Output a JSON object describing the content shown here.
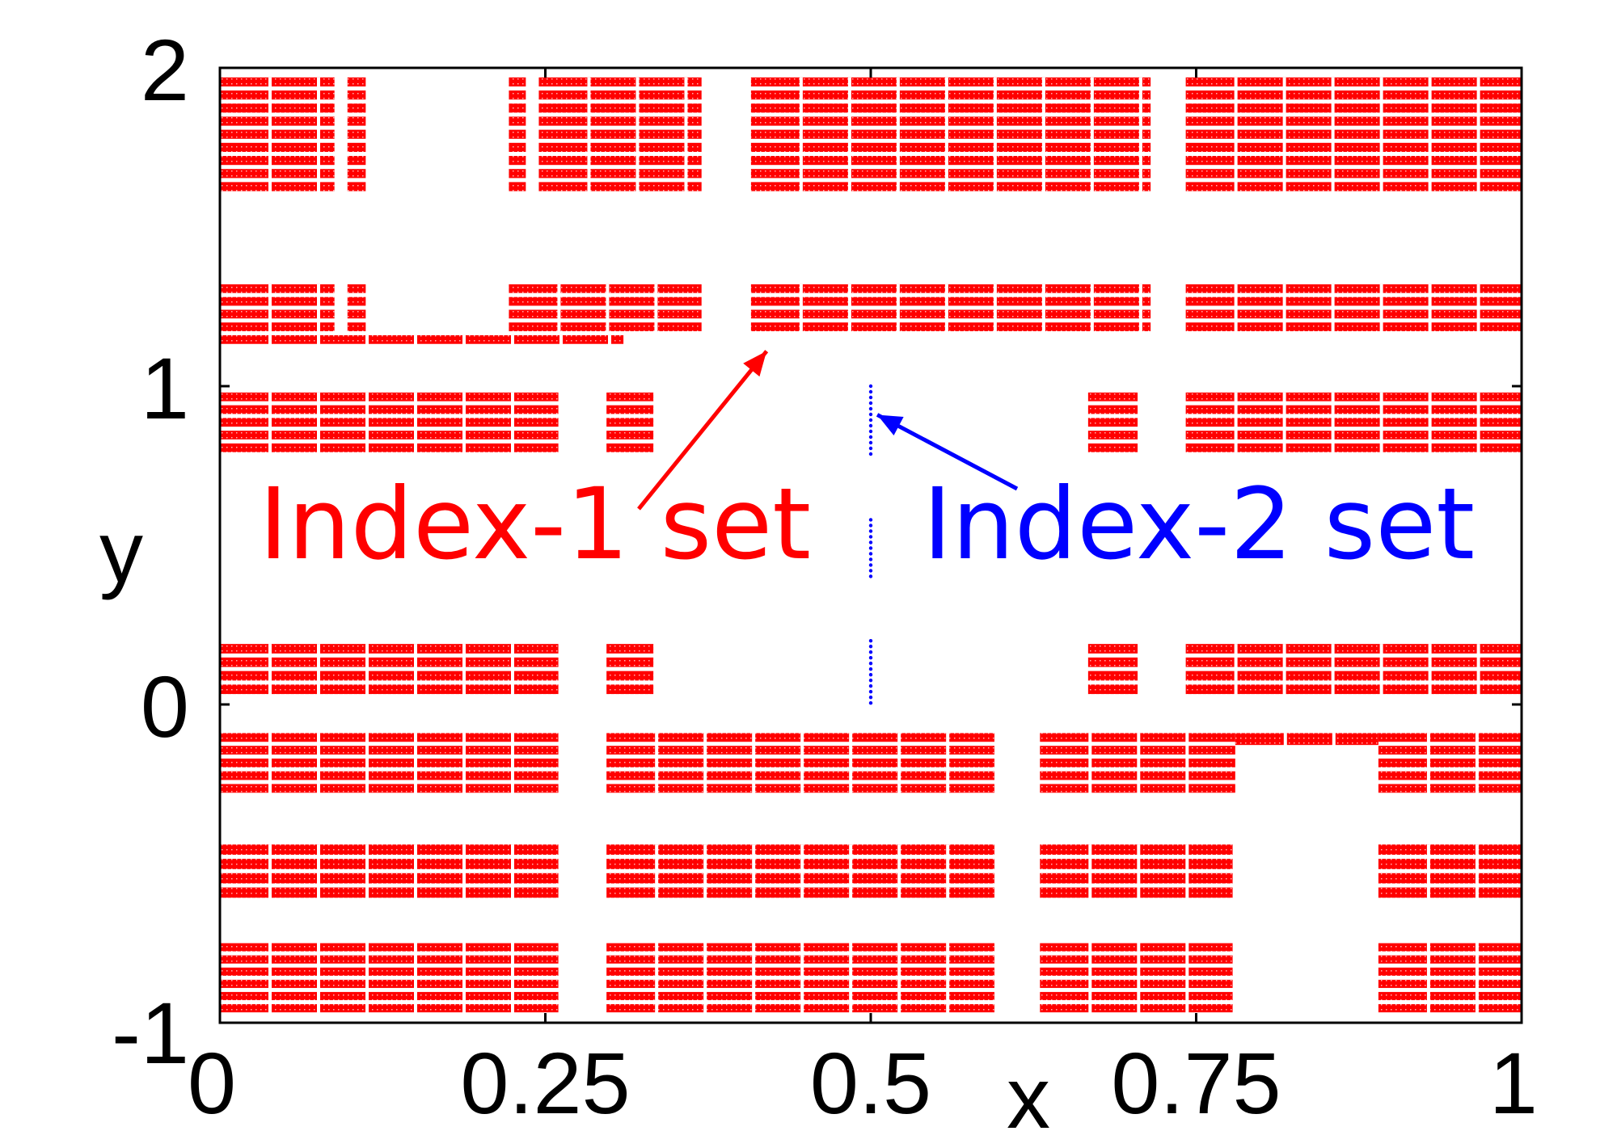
{
  "chart_data": {
    "type": "scatter",
    "title": "",
    "xlabel": "x",
    "ylabel": "y",
    "xlim": [
      0,
      1
    ],
    "ylim": [
      -1,
      2
    ],
    "xticks": [
      "0",
      "0.25",
      "0.5",
      "0.75",
      "1"
    ],
    "xtick_values": [
      0,
      0.25,
      0.5,
      0.75,
      1
    ],
    "yticks": [
      "-1",
      "0",
      "1",
      "2"
    ],
    "ytick_values": [
      -1,
      0,
      1,
      2
    ],
    "grid": false,
    "series": [
      {
        "name": "Index-1 set",
        "color": "#ff0000",
        "marker": "dense point clusters",
        "blocks": [
          {
            "x": [
              0.0,
              0.088
            ],
            "y": [
              1.6,
              1.97
            ]
          },
          {
            "x": [
              0.098,
              0.112
            ],
            "y": [
              1.6,
              1.97
            ]
          },
          {
            "x": [
              0.222,
              0.235
            ],
            "y": [
              1.6,
              1.97
            ]
          },
          {
            "x": [
              0.245,
              0.37
            ],
            "y": [
              1.6,
              1.97
            ]
          },
          {
            "x": [
              0.408,
              0.715
            ],
            "y": [
              1.6,
              1.97
            ]
          },
          {
            "x": [
              0.742,
              1.0
            ],
            "y": [
              1.6,
              1.97
            ]
          },
          {
            "x": [
              0.0,
              0.088
            ],
            "y": [
              1.16,
              1.32
            ]
          },
          {
            "x": [
              0.098,
              0.112
            ],
            "y": [
              1.16,
              1.32
            ]
          },
          {
            "x": [
              0.222,
              0.37
            ],
            "y": [
              1.16,
              1.32
            ]
          },
          {
            "x": [
              0.408,
              0.715
            ],
            "y": [
              1.16,
              1.32
            ]
          },
          {
            "x": [
              0.742,
              1.0
            ],
            "y": [
              1.16,
              1.32
            ]
          },
          {
            "x": [
              0.0,
              0.31
            ],
            "y": [
              1.12,
              1.16
            ]
          },
          {
            "x": [
              0.0,
              0.26
            ],
            "y": [
              0.78,
              0.98
            ]
          },
          {
            "x": [
              0.297,
              0.333
            ],
            "y": [
              0.78,
              0.98
            ]
          },
          {
            "x": [
              0.667,
              0.705
            ],
            "y": [
              0.78,
              0.98
            ]
          },
          {
            "x": [
              0.742,
              1.0
            ],
            "y": [
              0.78,
              0.98
            ]
          },
          {
            "x": [
              0.0,
              0.26
            ],
            "y": [
              0.02,
              0.19
            ]
          },
          {
            "x": [
              0.297,
              0.333
            ],
            "y": [
              0.02,
              0.19
            ]
          },
          {
            "x": [
              0.667,
              0.705
            ],
            "y": [
              0.02,
              0.19
            ]
          },
          {
            "x": [
              0.742,
              1.0
            ],
            "y": [
              0.02,
              0.19
            ]
          },
          {
            "x": [
              0.0,
              0.26
            ],
            "y": [
              -0.29,
              -0.09
            ]
          },
          {
            "x": [
              0.297,
              0.595
            ],
            "y": [
              -0.29,
              -0.09
            ]
          },
          {
            "x": [
              0.63,
              0.78
            ],
            "y": [
              -0.29,
              -0.09
            ]
          },
          {
            "x": [
              0.78,
              0.89
            ],
            "y": [
              -0.14,
              -0.09
            ]
          },
          {
            "x": [
              0.89,
              1.0
            ],
            "y": [
              -0.29,
              -0.09
            ]
          },
          {
            "x": [
              0.0,
              0.26
            ],
            "y": [
              -0.62,
              -0.44
            ]
          },
          {
            "x": [
              0.297,
              0.595
            ],
            "y": [
              -0.62,
              -0.44
            ]
          },
          {
            "x": [
              0.63,
              0.778
            ],
            "y": [
              -0.62,
              -0.44
            ]
          },
          {
            "x": [
              0.89,
              1.0
            ],
            "y": [
              -0.62,
              -0.44
            ]
          },
          {
            "x": [
              0.0,
              0.26
            ],
            "y": [
              -0.98,
              -0.75
            ]
          },
          {
            "x": [
              0.297,
              0.595
            ],
            "y": [
              -0.98,
              -0.75
            ]
          },
          {
            "x": [
              0.63,
              0.778
            ],
            "y": [
              -0.98,
              -0.75
            ]
          },
          {
            "x": [
              0.89,
              1.0
            ],
            "y": [
              -0.98,
              -0.75
            ]
          }
        ]
      },
      {
        "name": "Index-2 set",
        "color": "#0000ff",
        "marker": "small points",
        "x": 0.5,
        "segments": [
          [
            0.78,
            1.0
          ],
          [
            0.4,
            0.58
          ],
          [
            0.0,
            0.2
          ]
        ]
      }
    ],
    "annotations": [
      {
        "text": "Index-1 set",
        "color": "#ff0000",
        "arrow_target": [
          0.42,
          1.11
        ],
        "text_at": [
          0.03,
          0.46
        ]
      },
      {
        "text": "Index-2 set",
        "color": "#0000ff",
        "arrow_target": [
          0.505,
          0.91
        ],
        "text_at": [
          0.54,
          0.46
        ]
      }
    ]
  }
}
